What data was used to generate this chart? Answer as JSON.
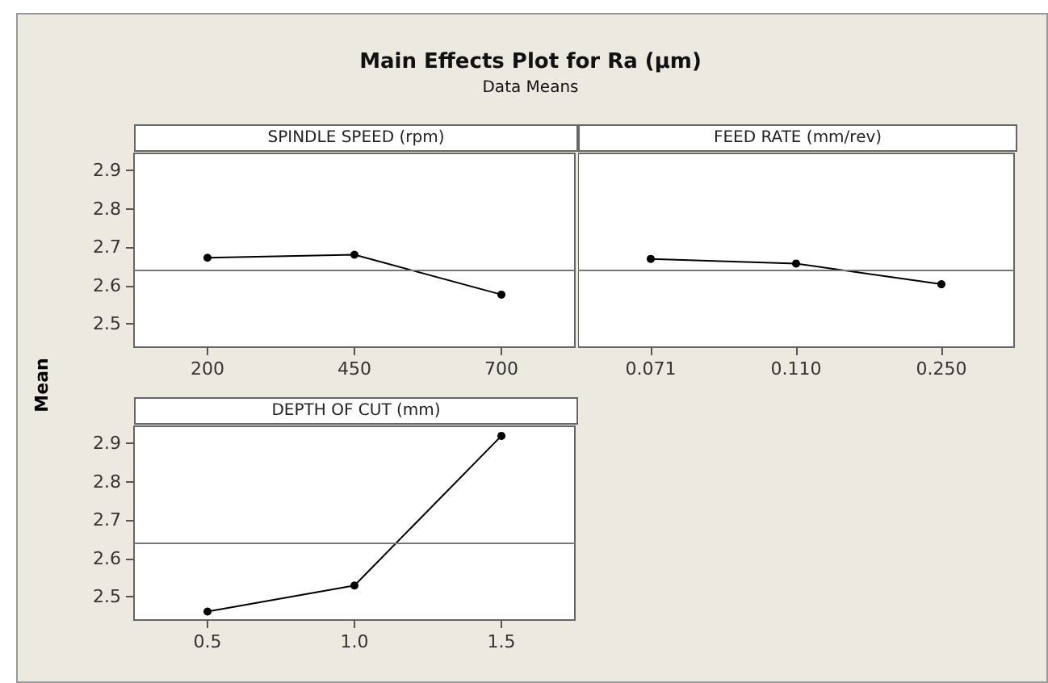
{
  "chart_data": [
    {
      "type": "line",
      "title": "Main Effects Plot for Ra (µm)",
      "subtitle": "Data Means",
      "ylabel": "Mean",
      "xlabel": "SPINDLE SPEED (rpm)",
      "categories": [
        "200",
        "450",
        "700"
      ],
      "series": [
        {
          "color": "#000000",
          "values": [
            2.673,
            2.681,
            2.577
          ]
        }
      ],
      "ylim": [
        2.44,
        2.945
      ],
      "yticks": [
        2.5,
        2.6,
        2.7,
        2.8,
        2.9
      ],
      "ref_lines": [
        {
          "axis": "y",
          "value": 2.643,
          "color": "#777777"
        }
      ],
      "marker": "circle",
      "line_style": "solid",
      "grid": false
    },
    {
      "type": "line",
      "xlabel": "FEED RATE (mm/rev)",
      "categories": [
        "0.071",
        "0.110",
        "0.250"
      ],
      "series": [
        {
          "color": "#000000",
          "values": [
            2.67,
            2.658,
            2.604
          ]
        }
      ],
      "ylim": [
        2.44,
        2.945
      ],
      "yticks": [
        2.5,
        2.6,
        2.7,
        2.8,
        2.9
      ],
      "ref_lines": [
        {
          "axis": "y",
          "value": 2.643,
          "color": "#777777"
        }
      ],
      "marker": "circle",
      "line_style": "solid",
      "grid": false,
      "tick_labels": "x"
    },
    {
      "type": "line",
      "xlabel": "DEPTH OF CUT (mm)",
      "categories": [
        "0.5",
        "1.0",
        "1.5"
      ],
      "series": [
        {
          "color": "#000000",
          "values": [
            2.462,
            2.53,
            2.92
          ]
        }
      ],
      "ylim": [
        2.44,
        2.945
      ],
      "yticks": [
        2.5,
        2.6,
        2.7,
        2.8,
        2.9
      ],
      "ref_lines": [
        {
          "axis": "y",
          "value": 2.643,
          "color": "#777777"
        }
      ],
      "marker": "circle",
      "line_style": "solid",
      "grid": false
    }
  ]
}
